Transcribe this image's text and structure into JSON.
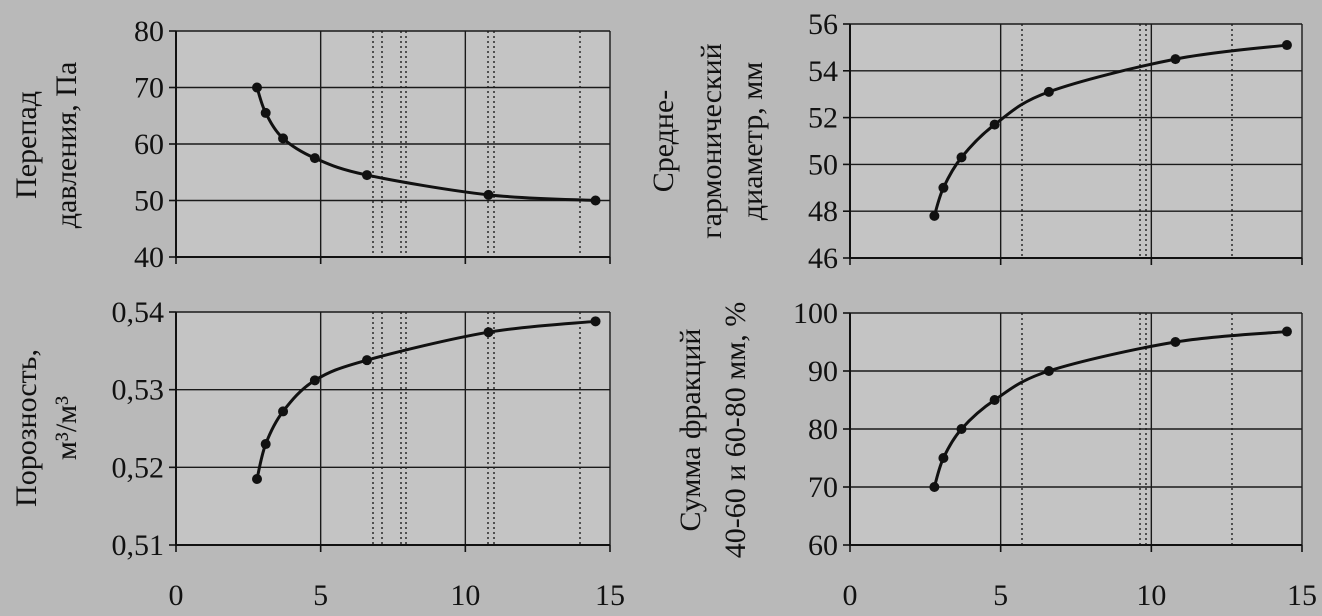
{
  "chart_data": [
    {
      "type": "line",
      "ylabel_lines": [
        "Перепад",
        "давления, Па"
      ],
      "xlim": [
        0,
        15
      ],
      "ylim": [
        40,
        80
      ],
      "yticks": [
        40,
        50,
        60,
        70,
        80
      ],
      "xticks": [
        0,
        5,
        10,
        15
      ],
      "x_tick_labels": [],
      "grid": true,
      "series": [
        {
          "x": [
            2.8,
            3.1,
            3.7,
            4.8,
            6.6,
            10.8,
            14.5
          ],
          "y": [
            70,
            65.5,
            61,
            57.5,
            54.5,
            51,
            50
          ]
        }
      ]
    },
    {
      "type": "line",
      "ylabel_lines": [
        "Средне-",
        "гармонический",
        "диаметр, мм"
      ],
      "xlim": [
        0,
        15
      ],
      "ylim": [
        46,
        56
      ],
      "yticks": [
        46,
        48,
        50,
        52,
        54,
        56
      ],
      "xticks": [
        0,
        5,
        10,
        15
      ],
      "x_tick_labels": [],
      "grid": true,
      "series": [
        {
          "x": [
            2.8,
            3.1,
            3.7,
            4.8,
            6.6,
            10.8,
            14.5
          ],
          "y": [
            47.8,
            49,
            50.3,
            51.7,
            53.1,
            54.5,
            55.1
          ]
        }
      ]
    },
    {
      "type": "line",
      "ylabel_lines": [
        "Порозность,",
        "м³/м³"
      ],
      "xlim": [
        0,
        15
      ],
      "ylim": [
        0.51,
        0.54
      ],
      "yticks": [
        "0,51",
        "0,52",
        "0,53",
        "0,54"
      ],
      "ytick_values": [
        0.51,
        0.52,
        0.53,
        0.54
      ],
      "xticks": [
        0,
        5,
        10,
        15
      ],
      "x_tick_labels": [
        "0",
        "5",
        "10",
        "15"
      ],
      "grid": true,
      "series": [
        {
          "x": [
            2.8,
            3.1,
            3.7,
            4.8,
            6.6,
            10.8,
            14.5
          ],
          "y": [
            0.5185,
            0.523,
            0.5272,
            0.5312,
            0.5338,
            0.5374,
            0.5388
          ]
        }
      ]
    },
    {
      "type": "line",
      "ylabel_lines": [
        "Сумма фракций",
        "40-60 и 60-80 мм, %"
      ],
      "xlim": [
        0,
        15
      ],
      "ylim": [
        60,
        100
      ],
      "yticks": [
        60,
        70,
        80,
        90,
        100
      ],
      "xticks": [
        0,
        5,
        10,
        15
      ],
      "x_tick_labels": [
        "0",
        "5",
        "10",
        "15"
      ],
      "grid": true,
      "series": [
        {
          "x": [
            2.8,
            3.1,
            3.7,
            4.8,
            6.6,
            10.8,
            14.5
          ],
          "y": [
            70,
            75,
            80,
            85,
            90,
            95,
            96.8
          ]
        }
      ]
    }
  ]
}
